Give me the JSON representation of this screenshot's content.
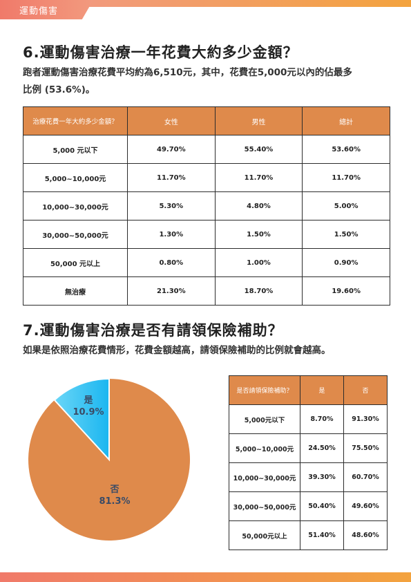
{
  "header": {
    "tag": "運動傷害"
  },
  "section6": {
    "title": "6.運動傷害治療一年花費大約多少金額？",
    "desc_line1": "跑者運動傷害治療花費平均約為6,510元，其中，花費在5,000元以內的佔最多",
    "desc_line2": "比例 (53.6%)。",
    "table": {
      "headers": [
        "治療花費一年大約多少金額？",
        "女性",
        "男性",
        "總計"
      ],
      "rows": [
        [
          "5,000 元以下",
          "49.70%",
          "55.40%",
          "53.60%"
        ],
        [
          "5,000~10,000元",
          "11.70%",
          "11.70%",
          "11.70%"
        ],
        [
          "10,000~30,000元",
          "5.30%",
          "4.80%",
          "5.00%"
        ],
        [
          "30,000~50,000元",
          "1.30%",
          "1.50%",
          "1.50%"
        ],
        [
          "50,000 元以上",
          "0.80%",
          "1.00%",
          "0.90%"
        ],
        [
          "無治療",
          "21.30%",
          "18.70%",
          "19.60%"
        ]
      ]
    }
  },
  "section7": {
    "title": "7.運動傷害治療是否有請領保險補助？",
    "desc": "如果是依照治療花費情形，花費金額越高，請領保險補助的比例就會越高。",
    "table": {
      "headers": [
        "是否請領保險補助？",
        "是",
        "否"
      ],
      "rows": [
        [
          "5,000元以下",
          "8.70%",
          "91.30%"
        ],
        [
          "5,000~10,000元",
          "24.50%",
          "75.50%"
        ],
        [
          "10,000~30,000元",
          "39.30%",
          "60.70%"
        ],
        [
          "30,000~50,000元",
          "50.40%",
          "49.60%"
        ],
        [
          "50,000元以上",
          "51.40%",
          "48.60%"
        ]
      ]
    }
  },
  "chart_data": {
    "type": "pie",
    "title": "",
    "slices": [
      {
        "name": "是",
        "label": "10.9%",
        "value": 10.9,
        "color": "#2ec4f3"
      },
      {
        "name": "否",
        "label": "81.3%",
        "value": 81.3,
        "color": "#df8a4b"
      }
    ]
  }
}
